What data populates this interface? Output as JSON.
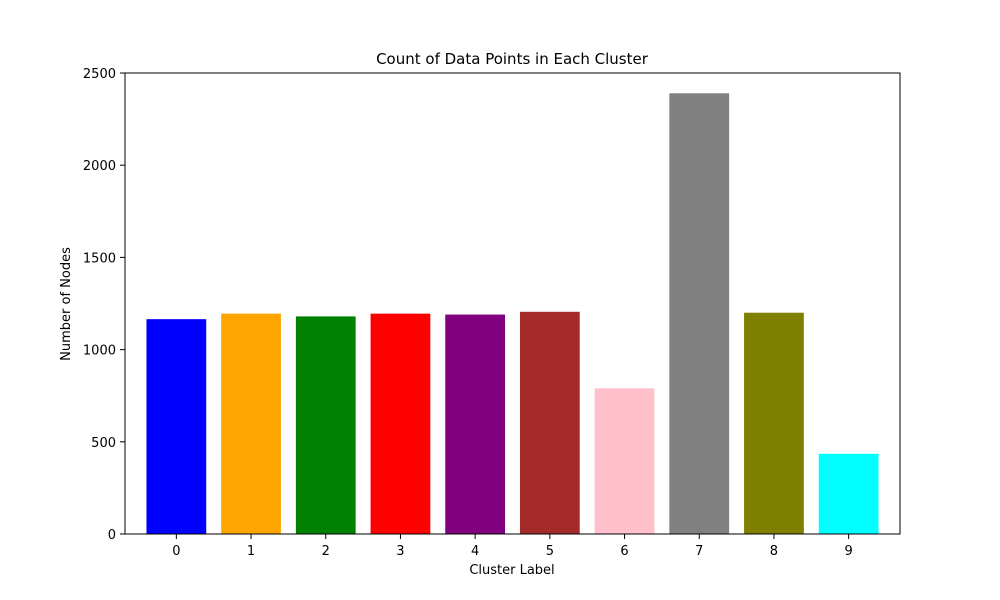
{
  "chart_data": {
    "type": "bar",
    "title": "Count of Data Points in Each Cluster",
    "xlabel": "Cluster Label",
    "ylabel": "Number of Nodes",
    "categories": [
      "0",
      "1",
      "2",
      "3",
      "4",
      "5",
      "6",
      "7",
      "8",
      "9"
    ],
    "values": [
      1165,
      1195,
      1180,
      1195,
      1190,
      1205,
      790,
      2390,
      1200,
      435
    ],
    "colors": [
      "#0000ff",
      "#ffa500",
      "#008000",
      "#ff0000",
      "#800080",
      "#a52a2a",
      "#ffc0cb",
      "#808080",
      "#808000",
      "#00ffff"
    ],
    "ylim": [
      0,
      2500
    ],
    "yticks": [
      0,
      500,
      1000,
      1500,
      2000,
      2500
    ],
    "ytick_labels": [
      "0",
      "500",
      "1000",
      "1500",
      "2000",
      "2500"
    ],
    "grid": false,
    "legend": "none"
  }
}
